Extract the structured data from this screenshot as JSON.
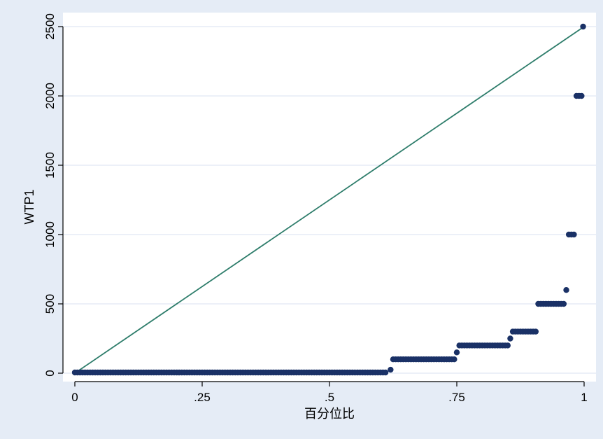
{
  "chart_data": {
    "type": "scatter",
    "xlabel": "百分位比",
    "ylabel": "WTP1",
    "xlim": [
      0,
      1
    ],
    "ylim": [
      0,
      2500
    ],
    "x_ticks": [
      {
        "value": 0,
        "label": "0"
      },
      {
        "value": 0.25,
        "label": ".25"
      },
      {
        "value": 0.5,
        "label": ".5"
      },
      {
        "value": 0.75,
        "label": ".75"
      },
      {
        "value": 1,
        "label": "1"
      }
    ],
    "y_ticks": [
      {
        "value": 0,
        "label": "0"
      },
      {
        "value": 500,
        "label": "500"
      },
      {
        "value": 1000,
        "label": "1000"
      },
      {
        "value": 1500,
        "label": "1500"
      },
      {
        "value": 2000,
        "label": "2000"
      },
      {
        "value": 2500,
        "label": "2500"
      }
    ],
    "grid": true,
    "reference_line": {
      "x": [
        0,
        1
      ],
      "y": [
        0,
        2500
      ]
    },
    "segments": [
      {
        "x_start": 0.0,
        "x_end": 0.61,
        "y": 5
      },
      {
        "x_start": 0.62,
        "x_end": 0.62,
        "y": 25
      },
      {
        "x_start": 0.625,
        "x_end": 0.745,
        "y": 100
      },
      {
        "x_start": 0.75,
        "x_end": 0.75,
        "y": 150
      },
      {
        "x_start": 0.755,
        "x_end": 0.85,
        "y": 200
      },
      {
        "x_start": 0.855,
        "x_end": 0.855,
        "y": 250
      },
      {
        "x_start": 0.86,
        "x_end": 0.905,
        "y": 300
      },
      {
        "x_start": 0.91,
        "x_end": 0.96,
        "y": 500
      },
      {
        "x_start": 0.965,
        "x_end": 0.965,
        "y": 600
      },
      {
        "x_start": 0.97,
        "x_end": 0.98,
        "y": 1000
      },
      {
        "x_start": 0.985,
        "x_end": 0.995,
        "y": 2000
      },
      {
        "x_start": 0.998,
        "x_end": 0.998,
        "y": 2500
      }
    ],
    "colors": {
      "background": "#e5ecf6",
      "plot_area": "#ffffff",
      "grid": "#e5ecf6",
      "points": "#1a3166",
      "reference_line": "#2e7d6b"
    }
  }
}
